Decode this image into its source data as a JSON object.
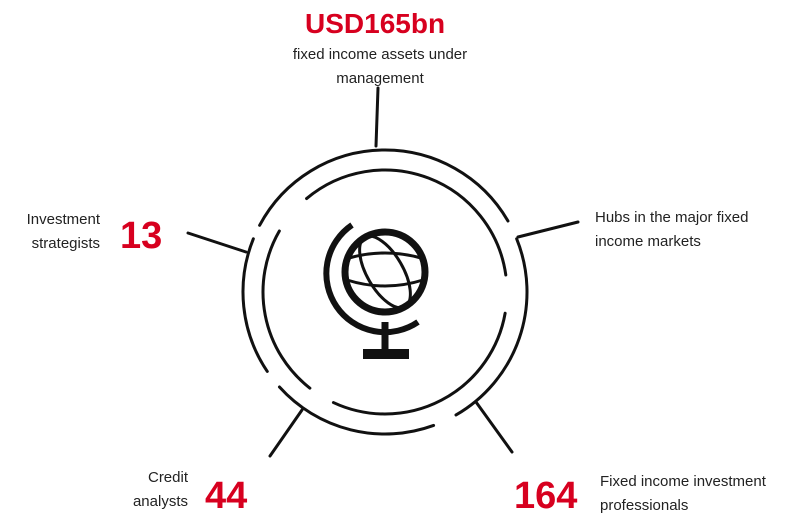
{
  "items": [
    {
      "value": "USD165bn",
      "label_lines": [
        "fixed income assets under",
        "management"
      ]
    },
    {
      "value": "13",
      "label_lines": [
        "Investment",
        "strategists"
      ]
    },
    {
      "label_lines": [
        "Hubs in the major fixed",
        "income markets"
      ]
    },
    {
      "value": "44",
      "label_lines": [
        "Credit",
        "analysts"
      ]
    },
    {
      "value": "164",
      "label_lines": [
        "Fixed income investment",
        "professionals"
      ]
    }
  ]
}
